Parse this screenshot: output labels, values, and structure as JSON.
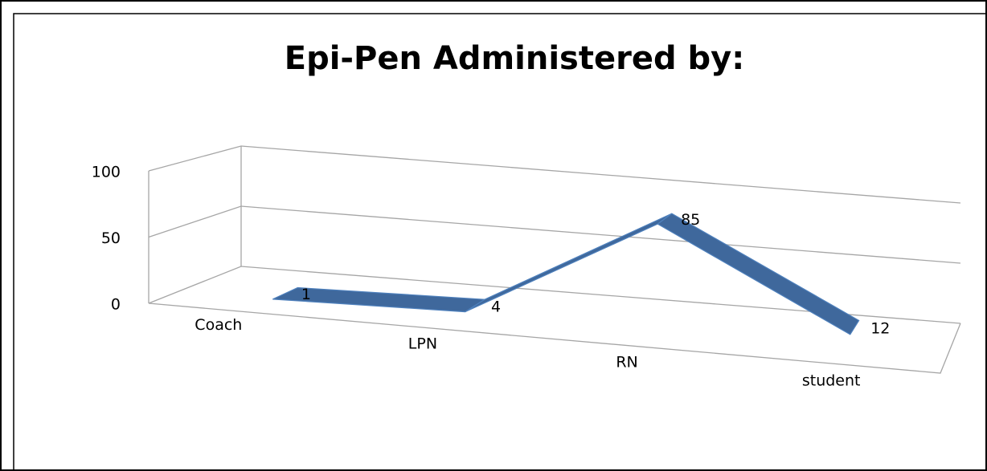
{
  "chart_data": {
    "type": "line",
    "title": "Epi-Pen Administered by:",
    "categories": [
      "Coach",
      "LPN",
      "RN",
      "student"
    ],
    "values": [
      1,
      4,
      85,
      12
    ],
    "color": "#3f689c",
    "ylim": [
      0,
      100
    ],
    "yticks": [
      0,
      50,
      100
    ],
    "grid": true
  }
}
